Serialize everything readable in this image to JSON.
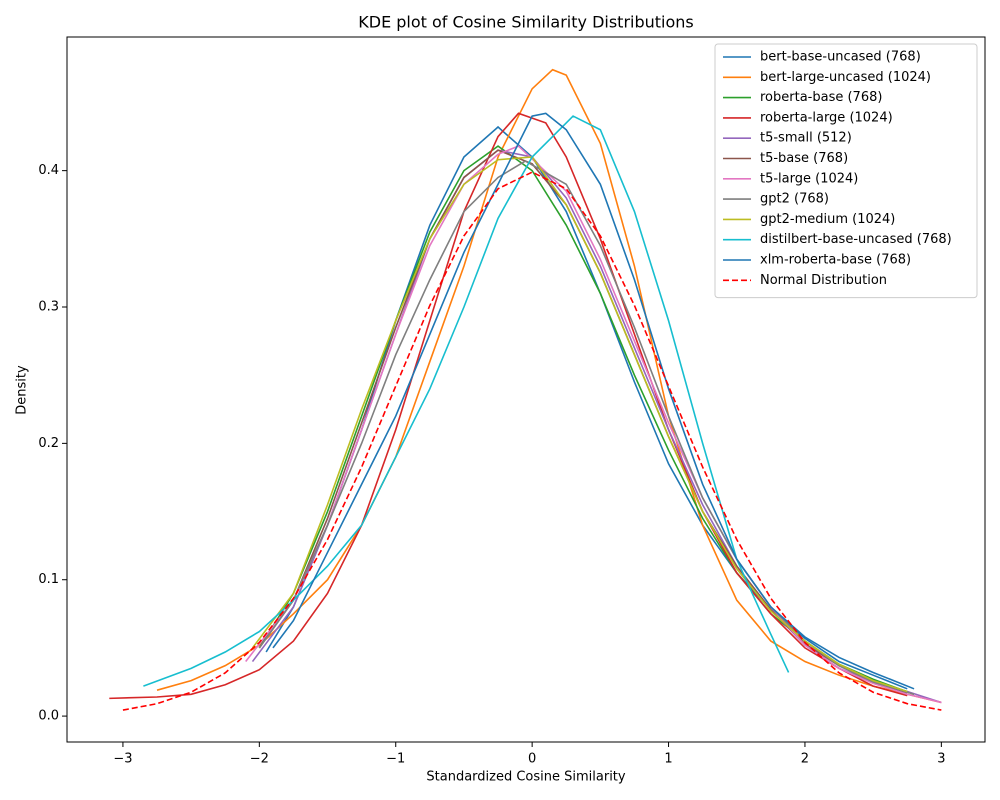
{
  "chart_data": {
    "type": "line",
    "title": "KDE plot of Cosine Similarity Distributions",
    "x_label": "Standardized Cosine Similarity",
    "y_label": "Density",
    "xlim": [
      -3.41,
      3.32
    ],
    "ylim": [
      -0.019,
      0.498
    ],
    "xticks": [
      {
        "value": -3,
        "label": "−3"
      },
      {
        "value": -2,
        "label": "−2"
      },
      {
        "value": -1,
        "label": "−1"
      },
      0,
      1,
      2,
      3
    ],
    "yticks": [
      {
        "value": 0,
        "label": "0.0"
      },
      0.1,
      0.2,
      0.3,
      0.4
    ],
    "legend": "upper right",
    "series": [
      {
        "name": "bert-base-uncased (768)",
        "color": "#1f77b4",
        "x": [
          -1.95,
          -1.75,
          -1.5,
          -1.25,
          -1,
          -0.75,
          -0.5,
          -0.25,
          0,
          0.25,
          0.5,
          0.75,
          1,
          1.25,
          1.5,
          1.75,
          2,
          2.25,
          2.5,
          2.75
        ],
        "values": [
          0.047,
          0.08,
          0.14,
          0.21,
          0.29,
          0.36,
          0.41,
          0.432,
          0.41,
          0.37,
          0.31,
          0.245,
          0.185,
          0.14,
          0.105,
          0.078,
          0.057,
          0.04,
          0.03,
          0.02
        ]
      },
      {
        "name": "bert-large-uncased (1024)",
        "color": "#ff7f0e",
        "x": [
          -2.75,
          -2.5,
          -2.25,
          -2,
          -1.75,
          -1.5,
          -1.25,
          -1,
          -0.75,
          -0.5,
          -0.25,
          0,
          0.15,
          0.25,
          0.5,
          0.75,
          1,
          1.25,
          1.5,
          1.75,
          2,
          2.25,
          2.5,
          2.75,
          3
        ],
        "values": [
          0.019,
          0.026,
          0.037,
          0.052,
          0.075,
          0.1,
          0.14,
          0.19,
          0.26,
          0.33,
          0.41,
          0.46,
          0.474,
          0.47,
          0.42,
          0.33,
          0.22,
          0.14,
          0.085,
          0.055,
          0.04,
          0.03,
          0.022,
          0.016,
          0.01
        ]
      },
      {
        "name": "roberta-base (768)",
        "color": "#2ca02c",
        "x": [
          -2,
          -1.75,
          -1.5,
          -1.25,
          -1,
          -0.75,
          -0.5,
          -0.25,
          0,
          0.25,
          0.5,
          0.75,
          1,
          1.25,
          1.5,
          1.75,
          2,
          2.25,
          2.5,
          2.8
        ],
        "values": [
          0.05,
          0.09,
          0.15,
          0.22,
          0.29,
          0.355,
          0.4,
          0.418,
          0.4,
          0.36,
          0.31,
          0.25,
          0.195,
          0.145,
          0.105,
          0.075,
          0.055,
          0.038,
          0.027,
          0.016
        ]
      },
      {
        "name": "roberta-large (1024)",
        "color": "#d62728",
        "x": [
          -3.1,
          -2.75,
          -2.5,
          -2.25,
          -2,
          -1.75,
          -1.5,
          -1.25,
          -1,
          -0.75,
          -0.5,
          -0.25,
          -0.1,
          0.1,
          0.25,
          0.5,
          0.75,
          1,
          1.25,
          1.5,
          1.75,
          2,
          2.25,
          2.5,
          2.75
        ],
        "values": [
          0.013,
          0.014,
          0.016,
          0.023,
          0.034,
          0.055,
          0.09,
          0.14,
          0.21,
          0.29,
          0.37,
          0.425,
          0.442,
          0.435,
          0.41,
          0.35,
          0.28,
          0.21,
          0.15,
          0.105,
          0.075,
          0.05,
          0.035,
          0.022,
          0.015
        ]
      },
      {
        "name": "t5-small (512)",
        "color": "#9467bd",
        "x": [
          -2.05,
          -1.75,
          -1.5,
          -1.25,
          -1,
          -0.75,
          -0.5,
          -0.25,
          0,
          0.25,
          0.5,
          0.75,
          1,
          1.25,
          1.5,
          1.75,
          2,
          2.25,
          2.5,
          2.75,
          3
        ],
        "values": [
          0.04,
          0.08,
          0.14,
          0.21,
          0.28,
          0.35,
          0.395,
          0.415,
          0.41,
          0.38,
          0.33,
          0.27,
          0.21,
          0.155,
          0.11,
          0.078,
          0.052,
          0.035,
          0.025,
          0.018,
          0.01
        ]
      },
      {
        "name": "t5-base (768)",
        "color": "#8c564b",
        "x": [
          -2,
          -1.75,
          -1.5,
          -1.25,
          -1,
          -0.75,
          -0.5,
          -0.25,
          0,
          0.25,
          0.5,
          0.75,
          1,
          1.25,
          1.5,
          1.75,
          2,
          2.25,
          2.5,
          2.75
        ],
        "values": [
          0.05,
          0.085,
          0.145,
          0.215,
          0.285,
          0.35,
          0.395,
          0.415,
          0.405,
          0.375,
          0.325,
          0.265,
          0.205,
          0.15,
          0.11,
          0.078,
          0.053,
          0.037,
          0.025,
          0.017
        ]
      },
      {
        "name": "t5-large (1024)",
        "color": "#e377c2",
        "x": [
          -2.1,
          -1.75,
          -1.5,
          -1.25,
          -1,
          -0.75,
          -0.5,
          -0.25,
          -0.1,
          0.25,
          0.5,
          0.75,
          1,
          1.25,
          1.5,
          1.75,
          2,
          2.25,
          2.5,
          2.75,
          3
        ],
        "values": [
          0.04,
          0.085,
          0.14,
          0.21,
          0.28,
          0.345,
          0.39,
          0.412,
          0.418,
          0.385,
          0.335,
          0.275,
          0.215,
          0.16,
          0.115,
          0.08,
          0.052,
          0.035,
          0.024,
          0.016,
          0.01
        ]
      },
      {
        "name": "gpt2 (768)",
        "color": "#7f7f7f",
        "x": [
          -2,
          -1.75,
          -1.5,
          -1.25,
          -1,
          -0.75,
          -0.5,
          -0.25,
          -0.05,
          0.25,
          0.5,
          0.75,
          1,
          1.25,
          1.5,
          1.75,
          2,
          2.25,
          2.5,
          2.8
        ],
        "values": [
          0.05,
          0.085,
          0.14,
          0.2,
          0.265,
          0.32,
          0.37,
          0.395,
          0.407,
          0.39,
          0.345,
          0.285,
          0.22,
          0.16,
          0.115,
          0.08,
          0.055,
          0.037,
          0.025,
          0.016
        ]
      },
      {
        "name": "gpt2-medium (1024)",
        "color": "#bcbd22",
        "x": [
          -2.05,
          -1.75,
          -1.5,
          -1.25,
          -1,
          -0.75,
          -0.5,
          -0.25,
          0,
          0.25,
          0.5,
          0.75,
          1,
          1.25,
          1.5,
          1.75,
          2,
          2.25,
          2.5,
          2.75
        ],
        "values": [
          0.05,
          0.09,
          0.155,
          0.225,
          0.29,
          0.35,
          0.39,
          0.408,
          0.41,
          0.375,
          0.325,
          0.265,
          0.205,
          0.15,
          0.108,
          0.077,
          0.055,
          0.038,
          0.026,
          0.018
        ]
      },
      {
        "name": "distilbert-base-uncased (768)",
        "color": "#17becf",
        "x": [
          -2.85,
          -2.5,
          -2.25,
          -2,
          -1.75,
          -1.5,
          -1.25,
          -1,
          -0.75,
          -0.5,
          -0.25,
          0,
          0.25,
          0.3,
          0.5,
          0.75,
          1,
          1.25,
          1.5,
          1.75,
          1.88
        ],
        "values": [
          0.022,
          0.035,
          0.047,
          0.062,
          0.085,
          0.11,
          0.14,
          0.19,
          0.24,
          0.3,
          0.365,
          0.41,
          0.435,
          0.44,
          0.43,
          0.37,
          0.29,
          0.2,
          0.115,
          0.06,
          0.032
        ]
      },
      {
        "name": "xlm-roberta-base (768)",
        "color": "#1f77b4",
        "x": [
          -1.9,
          -1.75,
          -1.5,
          -1.25,
          -1,
          -0.75,
          -0.5,
          -0.25,
          0,
          0.1,
          0.25,
          0.5,
          0.75,
          1,
          1.25,
          1.5,
          1.75,
          2,
          2.25,
          2.5,
          2.8
        ],
        "values": [
          0.05,
          0.07,
          0.12,
          0.17,
          0.22,
          0.28,
          0.34,
          0.39,
          0.44,
          0.442,
          0.43,
          0.39,
          0.32,
          0.24,
          0.17,
          0.115,
          0.08,
          0.058,
          0.043,
          0.032,
          0.02
        ]
      },
      {
        "name": "Normal Distribution",
        "color": "#ff0000",
        "linestyle": "dashed",
        "x": [
          -3,
          -2.75,
          -2.5,
          -2.25,
          -2,
          -1.75,
          -1.5,
          -1.25,
          -1,
          -0.75,
          -0.5,
          -0.25,
          0,
          0.25,
          0.5,
          0.75,
          1,
          1.25,
          1.5,
          1.75,
          2,
          2.25,
          2.5,
          2.75,
          3
        ],
        "values": [
          0.0044,
          0.0091,
          0.0175,
          0.0317,
          0.054,
          0.0863,
          0.1295,
          0.1826,
          0.242,
          0.3011,
          0.3521,
          0.3867,
          0.3989,
          0.3867,
          0.3521,
          0.3011,
          0.242,
          0.1826,
          0.1295,
          0.0863,
          0.054,
          0.0317,
          0.0175,
          0.0091,
          0.0044
        ]
      }
    ]
  }
}
